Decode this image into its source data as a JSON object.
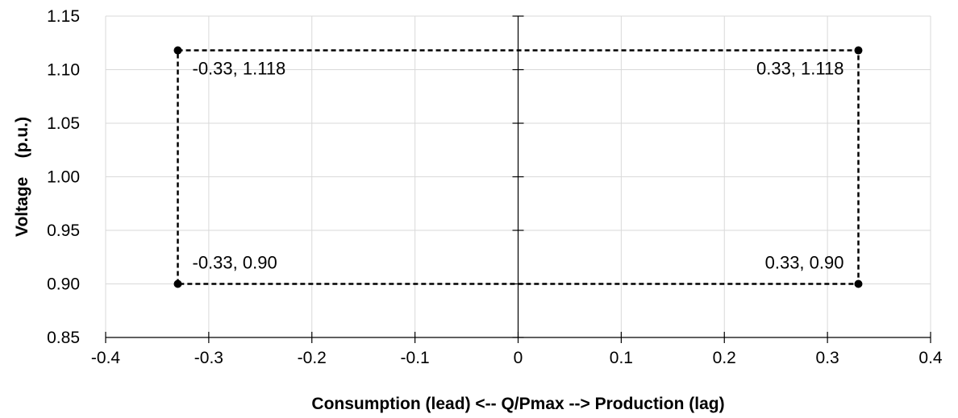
{
  "chart_data": {
    "type": "scatter",
    "title": "",
    "xlabel": "Consumption (lead) <-- Q/Pmax --> Production (lag)",
    "ylabel": "Voltage    (p.u.)",
    "xlim": [
      -0.4,
      0.4
    ],
    "ylim": [
      0.85,
      1.15
    ],
    "x_ticks": [
      "-0.4",
      "-0.3",
      "-0.2",
      "-0.1",
      "0",
      "0.1",
      "0.2",
      "0.3",
      "0.4"
    ],
    "y_ticks": [
      "0.85",
      "0.90",
      "0.95",
      "1.00",
      "1.05",
      "1.10",
      "1.15"
    ],
    "grid": true,
    "legend": "none",
    "series": [
      {
        "line_style": "dashed",
        "color": "#000000",
        "points": [
          {
            "x": -0.33,
            "y": 0.9
          },
          {
            "x": -0.33,
            "y": 1.118
          },
          {
            "x": 0.33,
            "y": 1.118
          },
          {
            "x": 0.33,
            "y": 0.9
          },
          {
            "x": -0.33,
            "y": 0.9
          }
        ]
      }
    ],
    "annotations": [
      {
        "text": "-0.33, 1.118",
        "x": -0.33,
        "y": 1.118,
        "anchor": "start"
      },
      {
        "text": "0.33, 1.118",
        "x": 0.33,
        "y": 1.118,
        "anchor": "end"
      },
      {
        "text": "-0.33, 0.90",
        "x": -0.33,
        "y": 0.9,
        "anchor": "start"
      },
      {
        "text": "0.33, 0.90",
        "x": 0.33,
        "y": 0.9,
        "anchor": "end"
      }
    ]
  }
}
